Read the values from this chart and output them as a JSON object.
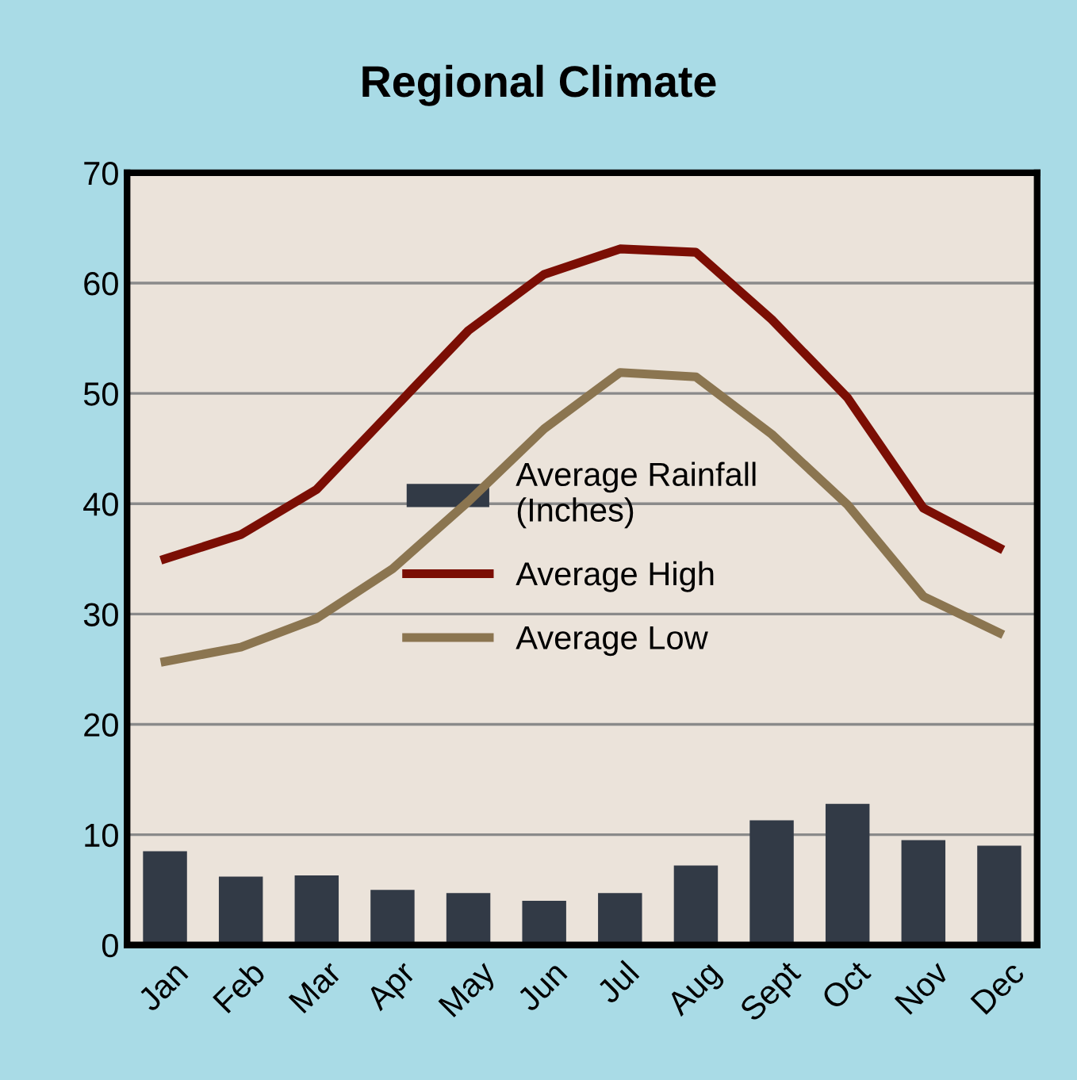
{
  "chart_data": {
    "type": "bar",
    "title": "Regional Climate",
    "categories": [
      "Jan",
      "Feb",
      "Mar",
      "Apr",
      "May",
      "Jun",
      "Jul",
      "Aug",
      "Sept",
      "Oct",
      "Nov",
      "Dec"
    ],
    "series": [
      {
        "name": "Average Rainfall\n(Inches)",
        "color": "#323a46",
        "values": [
          8.5,
          6.2,
          6.3,
          5.0,
          4.7,
          4.0,
          4.7,
          7.2,
          11.3,
          12.8,
          9.5,
          9.0
        ]
      },
      {
        "name": "Average High",
        "type": "line",
        "color": "#7b0e04",
        "values": [
          35.0,
          37.2,
          41.3,
          48.5,
          55.7,
          60.8,
          63.1,
          62.8,
          56.7,
          49.6,
          39.6,
          36.0
        ]
      },
      {
        "name": "Average Low",
        "type": "line",
        "color": "#8b7550",
        "values": [
          25.7,
          27.0,
          29.6,
          34.1,
          40.2,
          46.8,
          51.9,
          51.5,
          46.3,
          39.9,
          31.6,
          28.3
        ]
      }
    ],
    "ylim": [
      0,
      70
    ],
    "yticks": [
      0,
      10,
      20,
      30,
      40,
      50,
      60,
      70
    ],
    "grid": "y",
    "legend": "center",
    "line_style": "solid",
    "marker": "none"
  }
}
